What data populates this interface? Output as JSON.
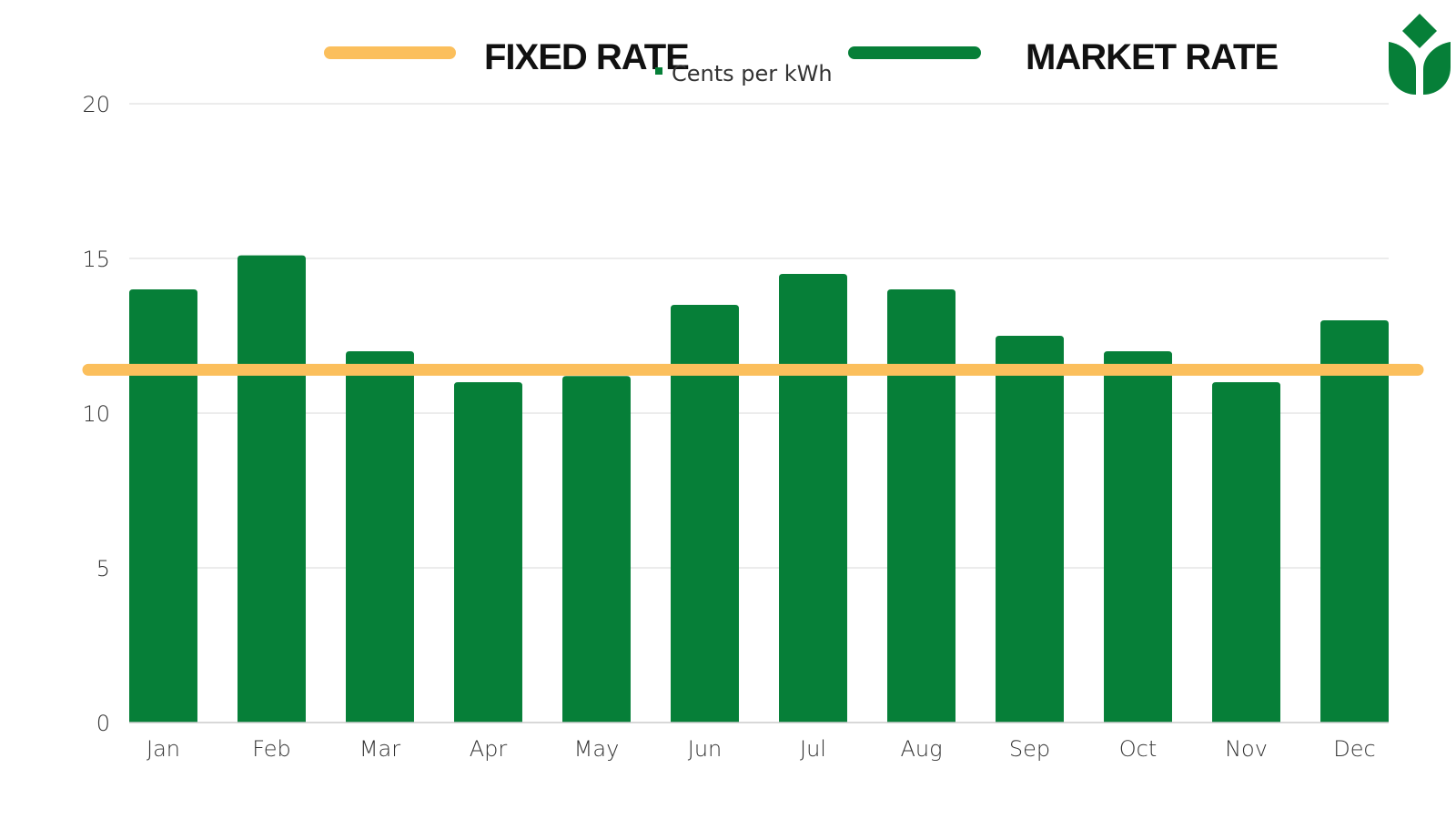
{
  "legend": {
    "fixed_label": "FIXED RATE",
    "market_label": "MARKET RATE",
    "series_label": "Cents per kWh"
  },
  "colors": {
    "bar": "#067F38",
    "fixed_line": "#FBBF5C",
    "grid": "#E6E6E6",
    "axis": "#CCCCCC",
    "logo": "#067F38"
  },
  "logo": {
    "icon": "leaf-logo-icon"
  },
  "chart_data": {
    "type": "bar",
    "categories": [
      "Jan",
      "Feb",
      "Mar",
      "Apr",
      "May",
      "Jun",
      "Jul",
      "Aug",
      "Sep",
      "Oct",
      "Nov",
      "Dec"
    ],
    "series": [
      {
        "name": "Cents per kWh",
        "values": [
          14,
          15.1,
          12,
          11,
          11.2,
          13.5,
          14.5,
          14,
          12.5,
          12,
          11,
          13
        ]
      }
    ],
    "reference_line": {
      "name": "FIXED RATE",
      "value": 11.4
    },
    "yticks": [
      0,
      5,
      10,
      15,
      20
    ],
    "ylim": [
      0,
      20
    ],
    "title": "",
    "xlabel": "",
    "ylabel": "",
    "grid": true,
    "legend_position": "top-center"
  }
}
